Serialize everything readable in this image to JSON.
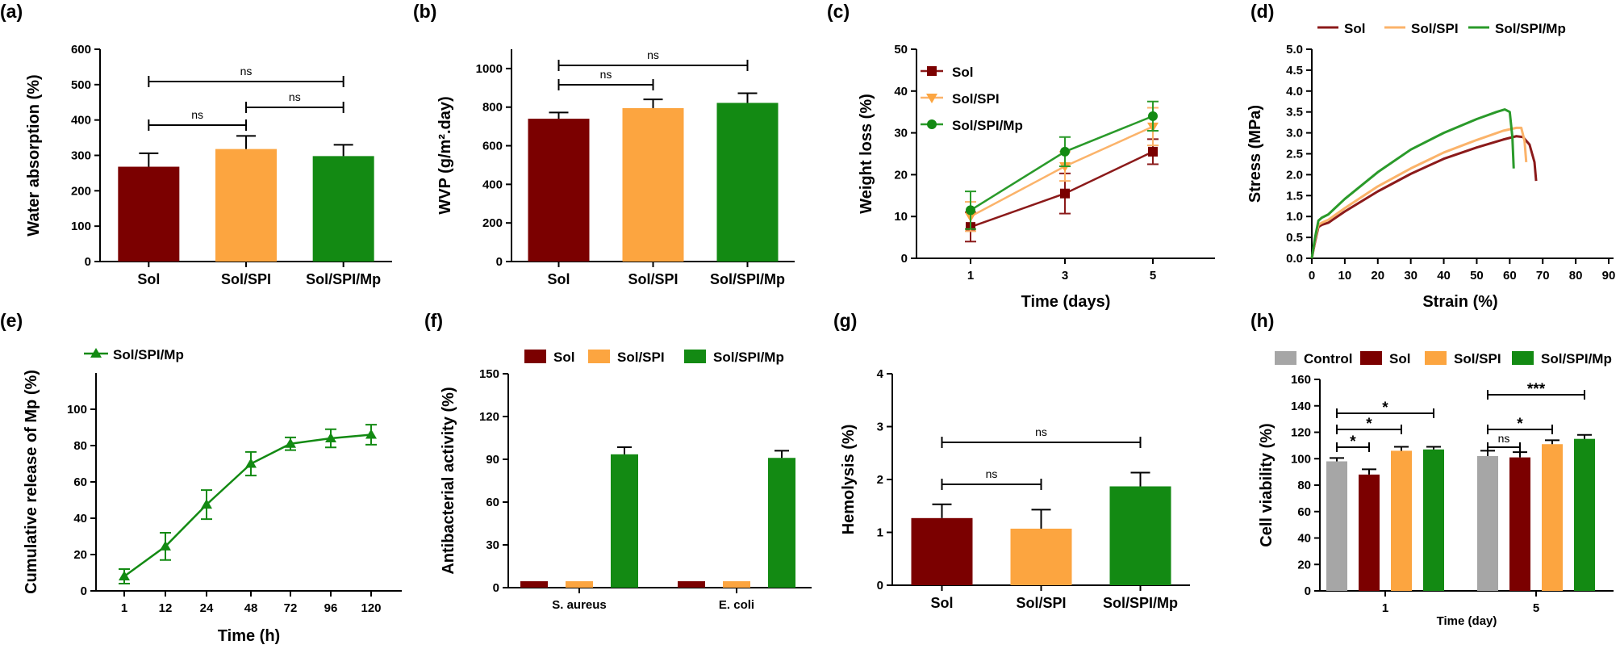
{
  "colors": {
    "Sol": "#7b0000",
    "Sol/SPI": "#fca540",
    "Sol/SPI/Mp": "#138a13",
    "Control": "#a6a6a6",
    "line_Sol": "#8b1a1a",
    "line_Sol/SPI": "#fbb36a",
    "line_Sol/SPI/Mp": "#2a9a2a"
  },
  "chart_data": [
    {
      "panel": "(a)",
      "type": "bar",
      "ylabel": "Water absorption (%)",
      "ylim": [
        0,
        600
      ],
      "yticks": [
        "0",
        "100",
        "200",
        "300",
        "400",
        "500",
        "600"
      ],
      "categories": [
        "Sol",
        "Sol/SPI",
        "Sol/SPI/Mp"
      ],
      "values": [
        268,
        318,
        298
      ],
      "errors": [
        38,
        37,
        32
      ],
      "significance": [
        {
          "from": 0,
          "to": 1,
          "label": "ns"
        },
        {
          "from": 1,
          "to": 2,
          "label": "ns"
        },
        {
          "from": 0,
          "to": 2,
          "label": "ns"
        }
      ]
    },
    {
      "panel": "(b)",
      "type": "bar",
      "ylabel": "WVP (g/m².day)",
      "ylim": [
        0,
        1100
      ],
      "yticks": [
        "0",
        "200",
        "400",
        "600",
        "800",
        "1000"
      ],
      "categories": [
        "Sol",
        "Sol/SPI",
        "Sol/SPI/Mp"
      ],
      "values": [
        740,
        795,
        822
      ],
      "errors": [
        32,
        45,
        50
      ],
      "significance": [
        {
          "from": 0,
          "to": 1,
          "label": "ns"
        },
        {
          "from": 0,
          "to": 2,
          "label": "ns"
        }
      ]
    },
    {
      "panel": "(c)",
      "type": "line",
      "xlabel": "Time (days)",
      "ylabel": "Weight loss (%)",
      "ylim": [
        0,
        50
      ],
      "yticks": [
        "0",
        "10",
        "20",
        "30",
        "40",
        "50"
      ],
      "x": [
        "1",
        "3",
        "5"
      ],
      "series": [
        {
          "name": "Sol",
          "values": [
            7.5,
            15.5,
            25.5
          ],
          "errors": [
            3.5,
            4.8,
            3.0
          ],
          "marker": "square"
        },
        {
          "name": "Sol/SPI",
          "values": [
            10.0,
            22.0,
            31.5
          ],
          "errors": [
            3.5,
            3.5,
            4.5
          ],
          "marker": "triangle-down"
        },
        {
          "name": "Sol/SPI/Mp",
          "values": [
            11.5,
            25.5,
            34.0
          ],
          "errors": [
            4.5,
            3.5,
            3.5
          ],
          "marker": "circle"
        }
      ]
    },
    {
      "panel": "(d)",
      "type": "line",
      "xlabel": "Strain (%)",
      "ylabel": "Stress (MPa)",
      "xlim": [
        0,
        90
      ],
      "ylim": [
        0,
        5
      ],
      "xticks": [
        "0",
        "10",
        "20",
        "30",
        "40",
        "50",
        "60",
        "70",
        "80",
        "90"
      ],
      "yticks": [
        "0.0",
        "0.5",
        "1.0",
        "1.5",
        "2.0",
        "2.5",
        "3.0",
        "3.5",
        "4.0",
        "4.5",
        "5.0"
      ],
      "legend": "top",
      "series": [
        {
          "name": "Sol",
          "points": [
            [
              0,
              0
            ],
            [
              1,
              0.4
            ],
            [
              2,
              0.75
            ],
            [
              3,
              0.8
            ],
            [
              5,
              0.85
            ],
            [
              10,
              1.12
            ],
            [
              20,
              1.6
            ],
            [
              30,
              2.02
            ],
            [
              40,
              2.38
            ],
            [
              50,
              2.65
            ],
            [
              58,
              2.84
            ],
            [
              62,
              2.92
            ],
            [
              64,
              2.9
            ],
            [
              66,
              2.72
            ],
            [
              67.5,
              2.3
            ],
            [
              68,
              1.85
            ]
          ]
        },
        {
          "name": "Sol/SPI",
          "points": [
            [
              0,
              0
            ],
            [
              1,
              0.45
            ],
            [
              2,
              0.8
            ],
            [
              3,
              0.85
            ],
            [
              5,
              0.92
            ],
            [
              10,
              1.2
            ],
            [
              20,
              1.72
            ],
            [
              30,
              2.15
            ],
            [
              40,
              2.53
            ],
            [
              50,
              2.83
            ],
            [
              58,
              3.05
            ],
            [
              62,
              3.12
            ],
            [
              63.5,
              3.12
            ],
            [
              64.5,
              2.8
            ],
            [
              65,
              2.3
            ]
          ]
        },
        {
          "name": "Sol/SPI/Mp",
          "points": [
            [
              0,
              0
            ],
            [
              1,
              0.5
            ],
            [
              2,
              0.9
            ],
            [
              3,
              0.97
            ],
            [
              5,
              1.05
            ],
            [
              10,
              1.42
            ],
            [
              20,
              2.06
            ],
            [
              30,
              2.6
            ],
            [
              40,
              3.0
            ],
            [
              50,
              3.33
            ],
            [
              56,
              3.5
            ],
            [
              58.5,
              3.56
            ],
            [
              60,
              3.5
            ],
            [
              60.8,
              2.9
            ],
            [
              61.2,
              2.15
            ]
          ]
        }
      ]
    },
    {
      "panel": "(e)",
      "type": "line",
      "xlabel": "Time (h)",
      "ylabel": "Cumulative release of Mp (%)",
      "ylim": [
        0,
        120
      ],
      "yticks": [
        "0",
        "20",
        "40",
        "60",
        "80",
        "100"
      ],
      "x": [
        "1",
        "12",
        "24",
        "48",
        "72",
        "96",
        "120"
      ],
      "series": [
        {
          "name": "Sol/SPI/Mp",
          "values": [
            8,
            24.5,
            47.5,
            70,
            81,
            84,
            86
          ],
          "errors": [
            4,
            7.5,
            8,
            6.5,
            3.5,
            5,
            5.5
          ],
          "marker": "triangle-up"
        }
      ]
    },
    {
      "panel": "(f)",
      "type": "bar",
      "ylabel": "Antibacterial activity (%)",
      "ylim": [
        0,
        150
      ],
      "yticks": [
        "0",
        "30",
        "60",
        "90",
        "120",
        "150"
      ],
      "categories": [
        "S. aureus",
        "E. coli"
      ],
      "series": [
        {
          "name": "Sol",
          "values": [
            4.5,
            4.5
          ],
          "errors": [
            0,
            0
          ]
        },
        {
          "name": "Sol/SPI",
          "values": [
            4.5,
            4.5
          ],
          "errors": [
            0,
            0
          ]
        },
        {
          "name": "Sol/SPI/Mp",
          "values": [
            93.5,
            91
          ],
          "errors": [
            5,
            5
          ]
        }
      ]
    },
    {
      "panel": "(g)",
      "type": "bar",
      "ylabel": "Hemolysis (%)",
      "ylim": [
        0,
        4
      ],
      "yticks": [
        "0",
        "1",
        "2",
        "3",
        "4"
      ],
      "categories": [
        "Sol",
        "Sol/SPI",
        "Sol/SPI/Mp"
      ],
      "values": [
        1.27,
        1.07,
        1.87
      ],
      "errors": [
        0.26,
        0.36,
        0.26
      ],
      "significance": [
        {
          "from": 0,
          "to": 1,
          "label": "ns"
        },
        {
          "from": 0,
          "to": 2,
          "label": "ns"
        }
      ]
    },
    {
      "panel": "(h)",
      "type": "bar",
      "xlabel": "Time (day)",
      "ylabel": "Cell viability (%)",
      "ylim": [
        0,
        160
      ],
      "yticks": [
        "0",
        "20",
        "40",
        "60",
        "80",
        "100",
        "120",
        "140",
        "160"
      ],
      "categories": [
        "1",
        "5"
      ],
      "series": [
        {
          "name": "Control",
          "values": [
            98,
            102
          ],
          "errors": [
            2.5,
            4
          ]
        },
        {
          "name": "Sol",
          "values": [
            88,
            101
          ],
          "errors": [
            4,
            4
          ]
        },
        {
          "name": "Sol/SPI",
          "values": [
            106,
            111
          ],
          "errors": [
            3,
            3
          ]
        },
        {
          "name": "Sol/SPI/Mp",
          "values": [
            107,
            115
          ],
          "errors": [
            2,
            3
          ]
        }
      ],
      "significance": [
        {
          "group": 0,
          "from": 0,
          "to": 1,
          "label": "*"
        },
        {
          "group": 0,
          "from": 0,
          "to": 2,
          "label": "*"
        },
        {
          "group": 0,
          "from": 0,
          "to": 3,
          "label": "*"
        },
        {
          "group": 1,
          "from": 0,
          "to": 1,
          "label": "ns"
        },
        {
          "group": 1,
          "from": 0,
          "to": 2,
          "label": "*"
        },
        {
          "group": 1,
          "from": 0,
          "to": 3,
          "label": "***"
        }
      ]
    }
  ]
}
